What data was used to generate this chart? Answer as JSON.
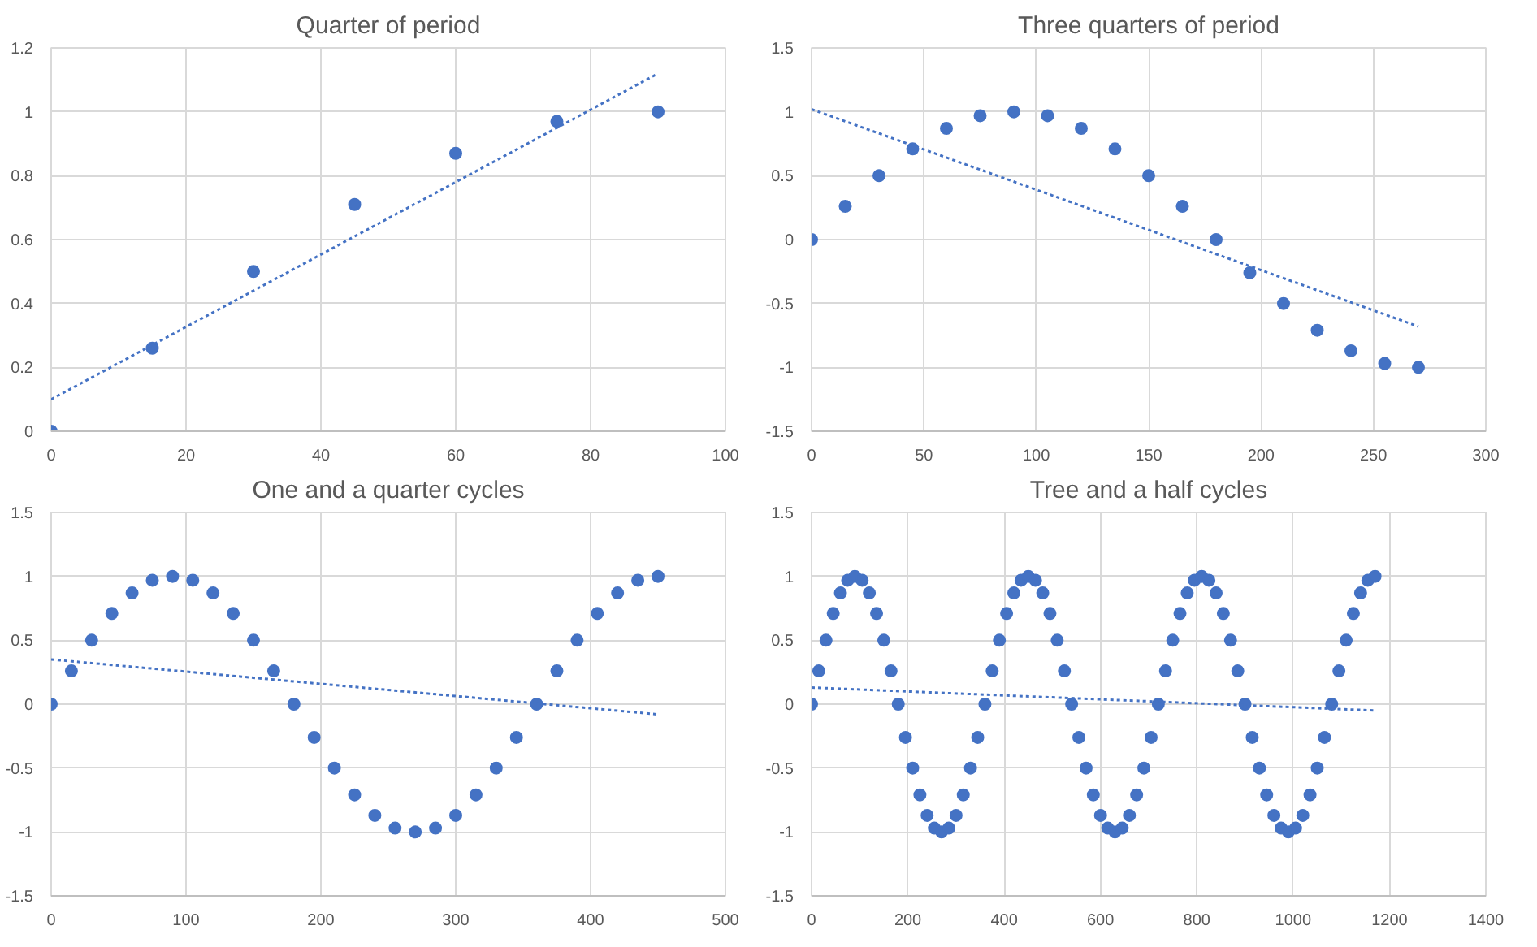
{
  "chart_data": [
    {
      "type": "scatter",
      "title": "Quarter of period",
      "xlim": [
        0,
        100
      ],
      "xticks": [
        0,
        20,
        40,
        60,
        80,
        100
      ],
      "ylim": [
        0,
        1.2
      ],
      "yticks": [
        0,
        0.2,
        0.4,
        0.6,
        0.8,
        1,
        1.2
      ],
      "grid": true,
      "marker": "circle",
      "series": [
        {
          "color": "#4472c4",
          "x": [
            0,
            15,
            30,
            45,
            60,
            75,
            90
          ],
          "values": [
            0,
            0.26,
            0.5,
            0.71,
            0.87,
            0.97,
            1
          ]
        },
        {
          "type": "line",
          "line_style": "dotted",
          "marker": "none",
          "color": "#4472c4",
          "x": [
            0,
            90
          ],
          "values": [
            0.1,
            1.12
          ]
        }
      ]
    },
    {
      "type": "scatter",
      "title": "Three quarters of period",
      "xlim": [
        0,
        300
      ],
      "xticks": [
        0,
        50,
        100,
        150,
        200,
        250,
        300
      ],
      "ylim": [
        -1.5,
        1.5
      ],
      "yticks": [
        -1.5,
        -1,
        -0.5,
        0,
        0.5,
        1,
        1.5
      ],
      "grid": true,
      "marker": "circle",
      "series": [
        {
          "color": "#4472c4",
          "x": [
            0,
            15,
            30,
            45,
            60,
            75,
            90,
            105,
            120,
            135,
            150,
            165,
            180,
            195,
            210,
            225,
            240,
            255,
            270
          ],
          "values": [
            0,
            0.26,
            0.5,
            0.71,
            0.87,
            0.97,
            1,
            0.97,
            0.87,
            0.71,
            0.5,
            0.26,
            0,
            -0.26,
            -0.5,
            -0.71,
            -0.87,
            -0.97,
            -1
          ]
        },
        {
          "type": "line",
          "line_style": "dotted",
          "marker": "none",
          "color": "#4472c4",
          "x": [
            0,
            270
          ],
          "values": [
            1.02,
            -0.68
          ]
        }
      ]
    },
    {
      "type": "scatter",
      "title": "One and a quarter cycles",
      "xlim": [
        0,
        500
      ],
      "xticks": [
        0,
        100,
        200,
        300,
        400,
        500
      ],
      "ylim": [
        -1.5,
        1.5
      ],
      "yticks": [
        -1.5,
        -1,
        -0.5,
        0,
        0.5,
        1,
        1.5
      ],
      "grid": true,
      "marker": "circle",
      "series": [
        {
          "color": "#4472c4",
          "x": [
            0,
            15,
            30,
            45,
            60,
            75,
            90,
            105,
            120,
            135,
            150,
            165,
            180,
            195,
            210,
            225,
            240,
            255,
            270,
            285,
            300,
            315,
            330,
            345,
            360,
            375,
            390,
            405,
            420,
            435,
            450
          ],
          "values": [
            0,
            0.26,
            0.5,
            0.71,
            0.87,
            0.97,
            1,
            0.97,
            0.87,
            0.71,
            0.5,
            0.26,
            0,
            -0.26,
            -0.5,
            -0.71,
            -0.87,
            -0.97,
            -1,
            -0.97,
            -0.87,
            -0.71,
            -0.5,
            -0.26,
            0,
            0.26,
            0.5,
            0.71,
            0.87,
            0.97,
            1
          ]
        },
        {
          "type": "line",
          "line_style": "dotted",
          "marker": "none",
          "color": "#4472c4",
          "x": [
            0,
            450
          ],
          "values": [
            0.35,
            -0.08
          ]
        }
      ]
    },
    {
      "type": "scatter",
      "title": "Tree and a half cycles",
      "xlim": [
        0,
        1400
      ],
      "xticks": [
        0,
        200,
        400,
        600,
        800,
        1000,
        1200,
        1400
      ],
      "ylim": [
        -1.5,
        1.5
      ],
      "yticks": [
        -1.5,
        -1,
        -0.5,
        0,
        0.5,
        1,
        1.5
      ],
      "grid": true,
      "marker": "circle",
      "series": [
        {
          "color": "#4472c4",
          "x": [
            0,
            15,
            30,
            45,
            60,
            75,
            90,
            105,
            120,
            135,
            150,
            165,
            180,
            195,
            210,
            225,
            240,
            255,
            270,
            285,
            300,
            315,
            330,
            345,
            360,
            375,
            390,
            405,
            420,
            435,
            450,
            465,
            480,
            495,
            510,
            525,
            540,
            555,
            570,
            585,
            600,
            615,
            630,
            645,
            660,
            675,
            690,
            705,
            720,
            735,
            750,
            765,
            780,
            795,
            810,
            825,
            840,
            855,
            870,
            885,
            900,
            915,
            930,
            945,
            960,
            975,
            990,
            1005,
            1020,
            1035,
            1050,
            1065,
            1080,
            1095,
            1110,
            1125,
            1140,
            1155,
            1170
          ],
          "values": [
            0,
            0.26,
            0.5,
            0.71,
            0.87,
            0.97,
            1,
            0.97,
            0.87,
            0.71,
            0.5,
            0.26,
            0,
            -0.26,
            -0.5,
            -0.71,
            -0.87,
            -0.97,
            -1,
            -0.97,
            -0.87,
            -0.71,
            -0.5,
            -0.26,
            0,
            0.26,
            0.5,
            0.71,
            0.87,
            0.97,
            1,
            0.97,
            0.87,
            0.71,
            0.5,
            0.26,
            0,
            -0.26,
            -0.5,
            -0.71,
            -0.87,
            -0.97,
            -1,
            -0.97,
            -0.87,
            -0.71,
            -0.5,
            -0.26,
            0,
            0.26,
            0.5,
            0.71,
            0.87,
            0.97,
            1,
            0.97,
            0.87,
            0.71,
            0.5,
            0.26,
            0,
            -0.26,
            -0.5,
            -0.71,
            -0.87,
            -0.97,
            -1,
            -0.97,
            -0.87,
            -0.71,
            -0.5,
            -0.26,
            0,
            0.26,
            0.5,
            0.71,
            0.87,
            0.97,
            1
          ]
        },
        {
          "type": "line",
          "line_style": "dotted",
          "marker": "none",
          "color": "#4472c4",
          "x": [
            0,
            1170
          ],
          "values": [
            0.13,
            -0.05
          ]
        }
      ]
    }
  ]
}
